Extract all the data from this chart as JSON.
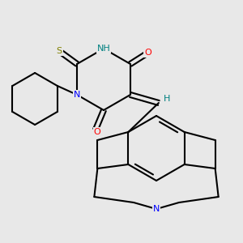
{
  "bg_color": "#e8e8e8",
  "bond_color": "#000000",
  "bond_width": 1.5,
  "figsize": [
    3.0,
    3.0
  ],
  "dpi": 100,
  "atom_colors": {
    "NH": "#008080",
    "N_blue": "#0000ff",
    "S": "#808000",
    "O": "#ff0000",
    "H": "#008080"
  }
}
